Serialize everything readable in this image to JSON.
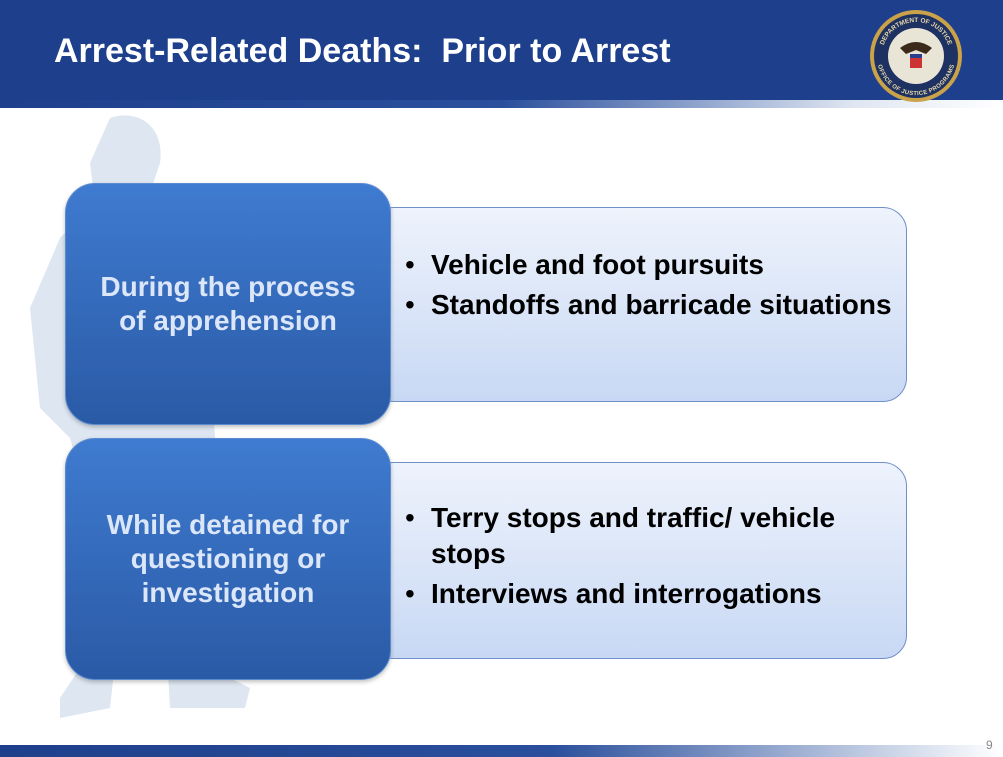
{
  "header": {
    "title": "Arrest-Related Deaths:  Prior to Arrest",
    "seal": {
      "top_text": "DEPARTMENT OF JUSTICE",
      "bottom_text": "OFFICE OF JUSTICE PROGRAMS"
    }
  },
  "sections": [
    {
      "label": "During the process of apprehension",
      "bullets": [
        "Vehicle and foot pursuits",
        "Standoffs and barricade situations"
      ]
    },
    {
      "label": "While detained for questioning or investigation",
      "bullets": [
        "Terry stops and traffic/ vehicle stops",
        "Interviews and interrogations"
      ]
    }
  ],
  "footer": {
    "page_number": "9"
  }
}
